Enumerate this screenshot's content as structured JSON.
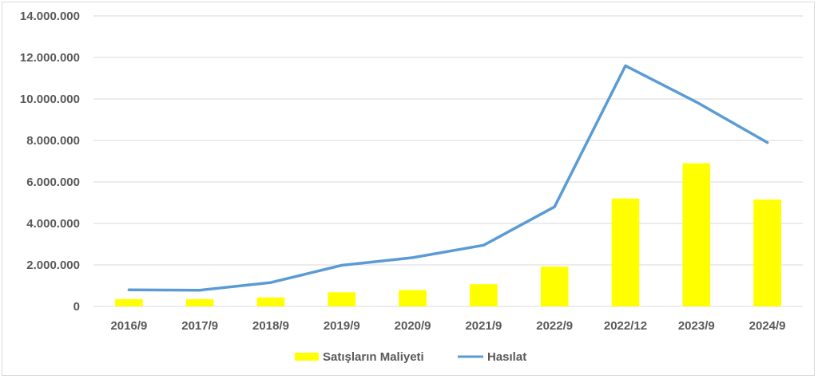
{
  "chart_data": {
    "type": "bar+line",
    "title": "",
    "xlabel": "",
    "ylabel": "",
    "categories": [
      "2016/9",
      "2017/9",
      "2018/9",
      "2019/9",
      "2020/9",
      "2021/9",
      "2022/9",
      "2022/12",
      "2023/9",
      "2024/9"
    ],
    "ylim": [
      0,
      14000000
    ],
    "yticks": [
      0,
      2000000,
      4000000,
      6000000,
      8000000,
      10000000,
      12000000,
      14000000
    ],
    "ytick_labels": [
      "0",
      "2.000.000",
      "4.000.000",
      "6.000.000",
      "8.000.000",
      "10.000.000",
      "12.000.000",
      "14.000.000"
    ],
    "grid": true,
    "legend_position": "bottom",
    "series": [
      {
        "name": "Satışların Maliyeti",
        "type": "bar",
        "color": "#ffff00",
        "values": [
          350000,
          350000,
          430000,
          680000,
          790000,
          1070000,
          1920000,
          5200000,
          6900000,
          5150000
        ]
      },
      {
        "name": "Hasılat",
        "type": "line",
        "color": "#5b9bd5",
        "values": [
          800000,
          780000,
          1150000,
          1980000,
          2350000,
          2950000,
          4800000,
          11600000,
          9850000,
          7900000
        ]
      }
    ]
  }
}
